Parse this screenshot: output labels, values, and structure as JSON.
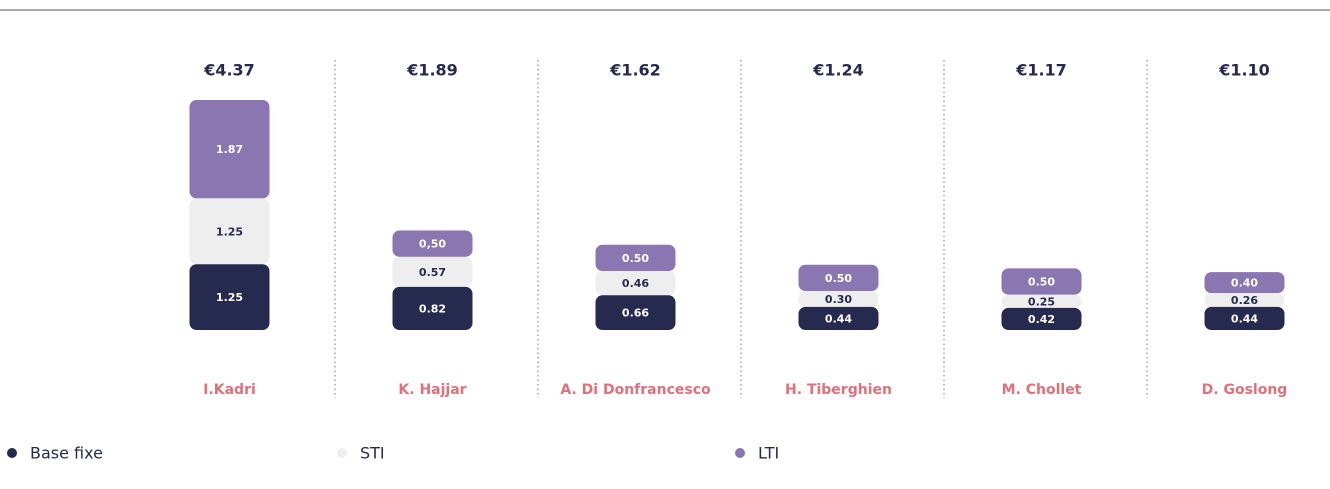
{
  "chart_data": {
    "type": "stacked_bar",
    "categories": [
      "I.Kadri",
      "K. Hajjar",
      "A. Di Donfrancesco",
      "H. Tiberghien",
      "M. Chollet",
      "D. Goslong"
    ],
    "totals": [
      4.37,
      1.89,
      1.62,
      1.24,
      1.17,
      1.1
    ],
    "total_labels": [
      "€4.37",
      "€1.89",
      "€1.62",
      "€1.24",
      "€1.17",
      "€1.10"
    ],
    "series": [
      {
        "name": "Base fixe",
        "color": "#272a4f",
        "values": [
          1.25,
          0.82,
          0.66,
          0.44,
          0.42,
          0.44
        ],
        "value_labels": [
          "1.25",
          "0.82",
          "0.66",
          "0.44",
          "0.42",
          "0.44"
        ]
      },
      {
        "name": "STI",
        "color": "#eeeeee",
        "values": [
          1.25,
          0.57,
          0.46,
          0.3,
          0.25,
          0.26
        ],
        "value_labels": [
          "1.25",
          "0.57",
          "0.46",
          "0.30",
          "0.25",
          "0.26"
        ]
      },
      {
        "name": "LTI",
        "color": "#8a76b0",
        "values": [
          1.87,
          0.5,
          0.5,
          0.5,
          0.5,
          0.4
        ],
        "value_labels": [
          "1.87",
          "0,50",
          "0.50",
          "0.50",
          "0.50",
          "0.40"
        ]
      }
    ]
  }
}
